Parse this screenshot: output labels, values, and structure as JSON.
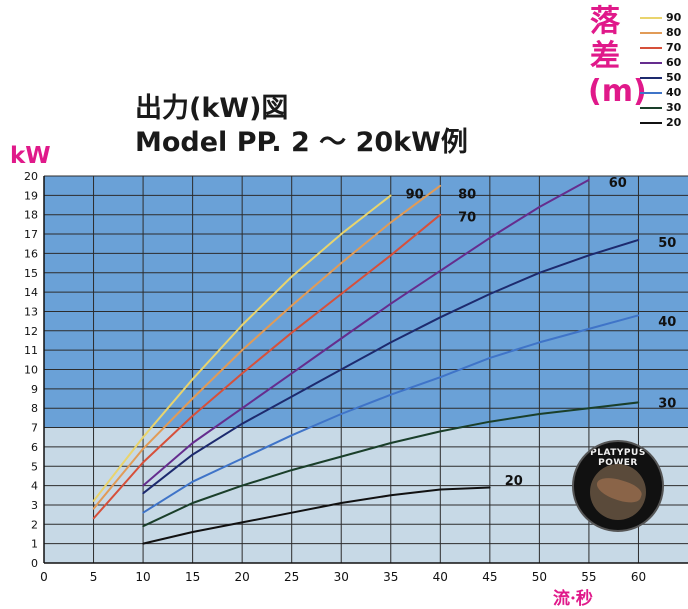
{
  "page": {
    "title_line1": "出力(kW)図",
    "title_line2": "Model PP. 2 ～ 20kW例",
    "legend_title": [
      "落",
      "差",
      "(m)"
    ],
    "logo_text": "PLATYPUS POWER"
  },
  "chart_data": {
    "type": "line",
    "title": "出力(kW)図 Model PP. 2 ～ 20kW例",
    "ylabel": "kW",
    "xlabel": "流·秒",
    "xlim": [
      0,
      65
    ],
    "ylim": [
      0,
      20
    ],
    "x_ticks": [
      0,
      5,
      10,
      15,
      20,
      25,
      30,
      35,
      40,
      45,
      50,
      55,
      60
    ],
    "y_ticks": [
      0,
      1,
      2,
      3,
      4,
      5,
      6,
      7,
      8,
      9,
      10,
      11,
      12,
      13,
      14,
      15,
      16,
      17,
      18,
      19,
      20
    ],
    "grid": true,
    "legend_title": "落差(m)",
    "legend_position": "top-right",
    "background_bands": [
      {
        "from": 0,
        "to": 7,
        "color": "#c7d9e6"
      },
      {
        "from": 7,
        "to": 20,
        "color": "#6aa1d7"
      }
    ],
    "series": [
      {
        "name": "90",
        "color": "#e9d46d",
        "x": [
          5,
          10,
          15,
          20,
          25,
          30,
          35
        ],
        "y": [
          3.2,
          6.5,
          9.5,
          12.3,
          14.8,
          17.0,
          19.0
        ]
      },
      {
        "name": "80",
        "color": "#e19b57",
        "x": [
          5,
          10,
          15,
          20,
          25,
          30,
          35,
          40
        ],
        "y": [
          2.8,
          5.9,
          8.5,
          11.0,
          13.3,
          15.5,
          17.6,
          19.5
        ]
      },
      {
        "name": "70",
        "color": "#d6503a",
        "x": [
          5,
          10,
          15,
          20,
          25,
          30,
          35,
          40
        ],
        "y": [
          2.3,
          5.2,
          7.6,
          9.8,
          11.9,
          13.9,
          15.9,
          18.0
        ]
      },
      {
        "name": "60",
        "color": "#652d8e",
        "x": [
          10,
          15,
          20,
          25,
          30,
          35,
          40,
          45,
          50,
          55
        ],
        "y": [
          4.0,
          6.2,
          8.0,
          9.8,
          11.6,
          13.4,
          15.1,
          16.8,
          18.4,
          19.8
        ]
      },
      {
        "name": "50",
        "color": "#1d2a6e",
        "x": [
          10,
          15,
          20,
          25,
          30,
          35,
          40,
          45,
          50,
          55,
          60
        ],
        "y": [
          3.6,
          5.6,
          7.2,
          8.6,
          10.0,
          11.4,
          12.7,
          13.9,
          15.0,
          15.9,
          16.7
        ]
      },
      {
        "name": "40",
        "color": "#3f74c8",
        "x": [
          10,
          15,
          20,
          25,
          30,
          35,
          40,
          45,
          50,
          55,
          60
        ],
        "y": [
          2.6,
          4.2,
          5.4,
          6.6,
          7.7,
          8.7,
          9.6,
          10.6,
          11.4,
          12.1,
          12.8
        ]
      },
      {
        "name": "30",
        "color": "#1a3f2a",
        "x": [
          10,
          15,
          20,
          25,
          30,
          35,
          40,
          45,
          50,
          55,
          60
        ],
        "y": [
          1.9,
          3.1,
          4.0,
          4.8,
          5.5,
          6.2,
          6.8,
          7.3,
          7.7,
          8.0,
          8.3
        ]
      },
      {
        "name": "20",
        "color": "#111111",
        "x": [
          10,
          15,
          20,
          25,
          30,
          35,
          40,
          45
        ],
        "y": [
          1.0,
          1.6,
          2.1,
          2.6,
          3.1,
          3.5,
          3.8,
          3.9
        ]
      }
    ],
    "line_labels": [
      {
        "name": "90",
        "x": 36.5,
        "y": 19.1
      },
      {
        "name": "80",
        "x": 41.8,
        "y": 19.1
      },
      {
        "name": "70",
        "x": 41.8,
        "y": 17.9
      },
      {
        "name": "60",
        "x": 57.0,
        "y": 19.7
      },
      {
        "name": "50",
        "x": 62.0,
        "y": 16.6
      },
      {
        "name": "40",
        "x": 62.0,
        "y": 12.5
      },
      {
        "name": "30",
        "x": 62.0,
        "y": 8.3
      },
      {
        "name": "20",
        "x": 46.5,
        "y": 4.3
      }
    ]
  }
}
